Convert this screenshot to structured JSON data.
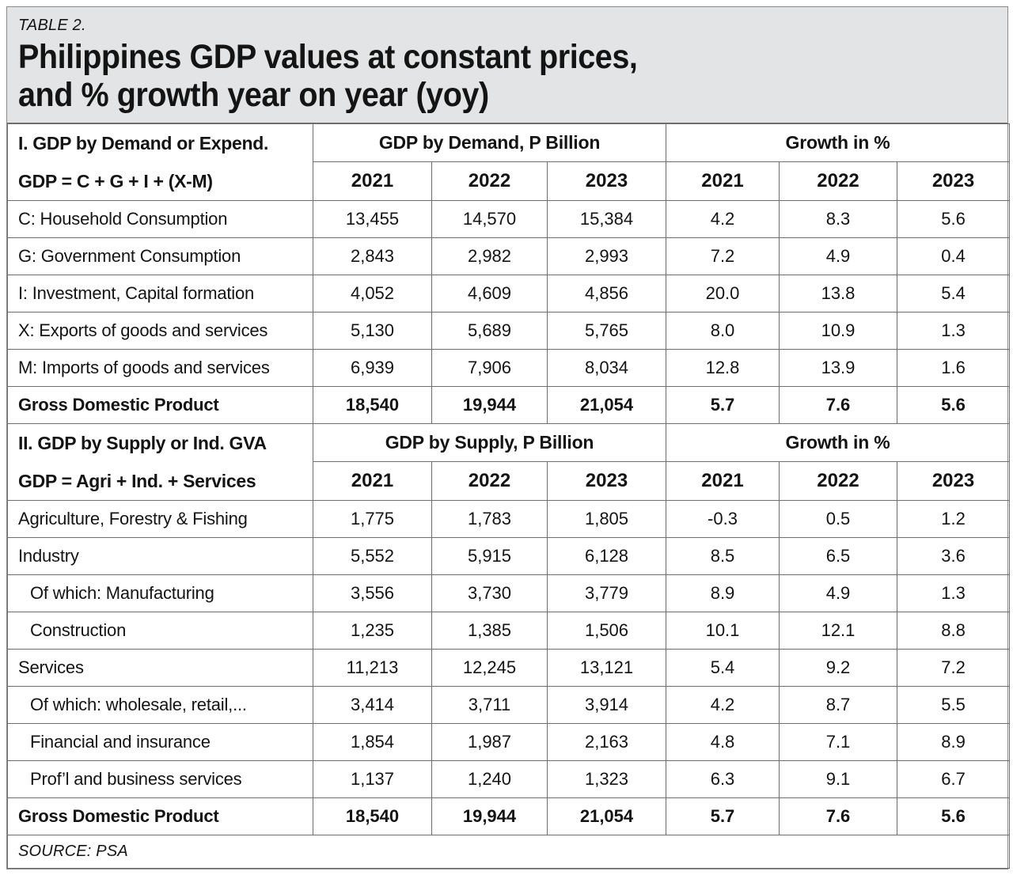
{
  "title": {
    "kicker": "TABLE 2.",
    "line1": "Philippines GDP values at constant prices,",
    "line2": "and % growth year on year (yoy)"
  },
  "source": "SOURCE: PSA",
  "colors": {
    "title_bg": "#e3e4e5",
    "grid": "#6e6e6e",
    "frame": "#8a8a8a",
    "ink": "#141414",
    "paper": "#ffffff"
  },
  "chart_data": {
    "type": "table",
    "title": "Philippines GDP values at constant prices, and % growth year on year (yoy)",
    "sections": [
      {
        "label_line1": "I. GDP by Demand or Expend.",
        "label_line2": "GDP = C + G + I + (X-M)",
        "group_headers": [
          "GDP by Demand, P Billion",
          "Growth in %"
        ],
        "year_headers": [
          "2021",
          "2022",
          "2023",
          "2021",
          "2022",
          "2023"
        ],
        "rows": [
          {
            "label": "C: Household Consumption",
            "indent": false,
            "bold": false,
            "values": [
              "13,455",
              "14,570",
              "15,384",
              "4.2",
              "8.3",
              "5.6"
            ]
          },
          {
            "label": "G: Government Consumption",
            "indent": false,
            "bold": false,
            "values": [
              "2,843",
              "2,982",
              "2,993",
              "7.2",
              "4.9",
              "0.4"
            ]
          },
          {
            "label": "I: Investment, Capital formation",
            "indent": false,
            "bold": false,
            "values": [
              "4,052",
              "4,609",
              "4,856",
              "20.0",
              "13.8",
              "5.4"
            ]
          },
          {
            "label": "X: Exports of goods and services",
            "indent": false,
            "bold": false,
            "values": [
              "5,130",
              "5,689",
              "5,765",
              "8.0",
              "10.9",
              "1.3"
            ]
          },
          {
            "label": "M: Imports of goods and services",
            "indent": false,
            "bold": false,
            "values": [
              "6,939",
              "7,906",
              "8,034",
              "12.8",
              "13.9",
              "1.6"
            ]
          },
          {
            "label": "Gross Domestic Product",
            "indent": false,
            "bold": true,
            "values": [
              "18,540",
              "19,944",
              "21,054",
              "5.7",
              "7.6",
              "5.6"
            ]
          }
        ]
      },
      {
        "label_line1": "II. GDP by Supply or Ind. GVA",
        "label_line2": "GDP = Agri + Ind. + Services",
        "group_headers": [
          "GDP by Supply, P Billion",
          "Growth in %"
        ],
        "year_headers": [
          "2021",
          "2022",
          "2023",
          "2021",
          "2022",
          "2023"
        ],
        "rows": [
          {
            "label": "Agriculture, Forestry & Fishing",
            "indent": false,
            "bold": false,
            "values": [
              "1,775",
              "1,783",
              "1,805",
              "-0.3",
              "0.5",
              "1.2"
            ]
          },
          {
            "label": "Industry",
            "indent": false,
            "bold": false,
            "values": [
              "5,552",
              "5,915",
              "6,128",
              "8.5",
              "6.5",
              "3.6"
            ]
          },
          {
            "label": "Of which: Manufacturing",
            "indent": true,
            "bold": false,
            "values": [
              "3,556",
              "3,730",
              "3,779",
              "8.9",
              "4.9",
              "1.3"
            ]
          },
          {
            "label": "Construction",
            "indent": true,
            "bold": false,
            "values": [
              "1,235",
              "1,385",
              "1,506",
              "10.1",
              "12.1",
              "8.8"
            ]
          },
          {
            "label": "Services",
            "indent": false,
            "bold": false,
            "values": [
              "11,213",
              "12,245",
              "13,121",
              "5.4",
              "9.2",
              "7.2"
            ]
          },
          {
            "label": "Of which: wholesale, retail,...",
            "indent": true,
            "bold": false,
            "values": [
              "3,414",
              "3,711",
              "3,914",
              "4.2",
              "8.7",
              "5.5"
            ]
          },
          {
            "label": "Financial and insurance",
            "indent": true,
            "bold": false,
            "values": [
              "1,854",
              "1,987",
              "2,163",
              "4.8",
              "7.1",
              "8.9"
            ]
          },
          {
            "label": "Prof’l and business services",
            "indent": true,
            "bold": false,
            "values": [
              "1,137",
              "1,240",
              "1,323",
              "6.3",
              "9.1",
              "6.7"
            ]
          },
          {
            "label": "Gross Domestic Product",
            "indent": false,
            "bold": true,
            "values": [
              "18,540",
              "19,944",
              "21,054",
              "5.7",
              "7.6",
              "5.6"
            ]
          }
        ]
      }
    ]
  }
}
